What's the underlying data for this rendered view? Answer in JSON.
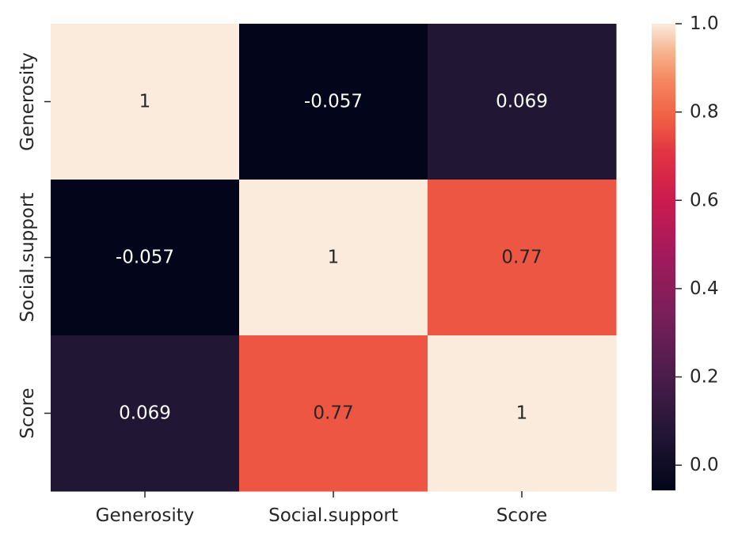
{
  "chart_data": {
    "type": "heatmap",
    "x_categories": [
      "Generosity",
      "Social.support",
      "Score"
    ],
    "y_categories": [
      "Generosity",
      "Social.support",
      "Score"
    ],
    "values": [
      [
        1,
        -0.057,
        0.069
      ],
      [
        -0.057,
        1,
        0.77
      ],
      [
        0.069,
        0.77,
        1
      ]
    ],
    "annotations": [
      [
        "1",
        "-0.057",
        "0.069"
      ],
      [
        "-0.057",
        "1",
        "0.77"
      ],
      [
        "0.069",
        "0.77",
        "1"
      ]
    ],
    "colorbar": {
      "range": [
        -0.057,
        1
      ],
      "ticks": [
        0.0,
        0.2,
        0.4,
        0.6,
        0.8,
        1.0
      ],
      "tick_labels": [
        "0.0",
        "0.2",
        "0.4",
        "0.6",
        "0.8",
        "1.0"
      ],
      "colormap": "rocket",
      "colorbar_position": "right"
    },
    "title": "",
    "xlabel": "",
    "ylabel": "",
    "grid": false
  }
}
